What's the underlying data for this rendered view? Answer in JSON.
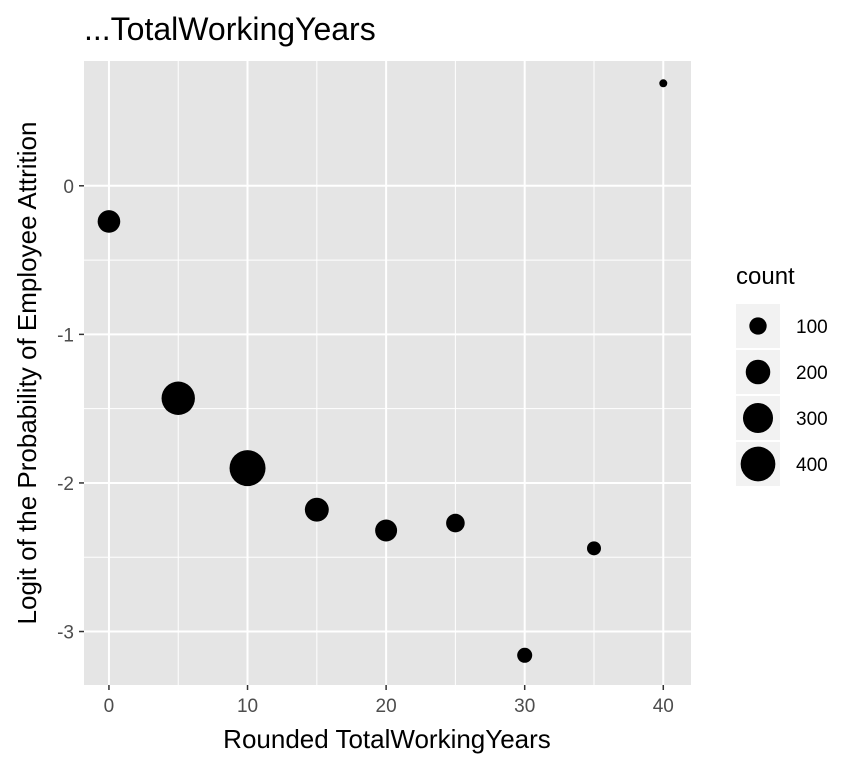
{
  "chart_data": {
    "type": "scatter",
    "title": "...TotalWorkingYears",
    "xlabel": "Rounded TotalWorkingYears",
    "ylabel": "Logit of the Probability of Employee Attrition",
    "xlim": [
      -1.8,
      42
    ],
    "ylim": [
      -3.36,
      0.84
    ],
    "xticks": [
      0,
      10,
      20,
      30,
      40
    ],
    "yticks": [
      0,
      -1,
      -2,
      -3
    ],
    "xtick_labels": [
      "0",
      "10",
      "20",
      "30",
      "40"
    ],
    "ytick_labels": [
      "0",
      "-1",
      "-2",
      "-3"
    ],
    "grid": true,
    "legend_position": "right",
    "panel_color": "#e5e5e5",
    "point_color": "#000000",
    "points": [
      {
        "x": 0,
        "y": -0.24,
        "count": 170
      },
      {
        "x": 5,
        "y": -1.43,
        "count": 370
      },
      {
        "x": 10,
        "y": -1.9,
        "count": 430
      },
      {
        "x": 15,
        "y": -2.18,
        "count": 190
      },
      {
        "x": 20,
        "y": -2.32,
        "count": 160
      },
      {
        "x": 25,
        "y": -2.27,
        "count": 115
      },
      {
        "x": 30,
        "y": -3.16,
        "count": 75
      },
      {
        "x": 35,
        "y": -2.44,
        "count": 65
      },
      {
        "x": 40,
        "y": 0.69,
        "count": 5
      }
    ],
    "size_legend": {
      "title": "count",
      "entries": [
        {
          "label": "100",
          "value": 100
        },
        {
          "label": "200",
          "value": 200
        },
        {
          "label": "300",
          "value": 300
        },
        {
          "label": "400",
          "value": 400
        }
      ]
    }
  }
}
